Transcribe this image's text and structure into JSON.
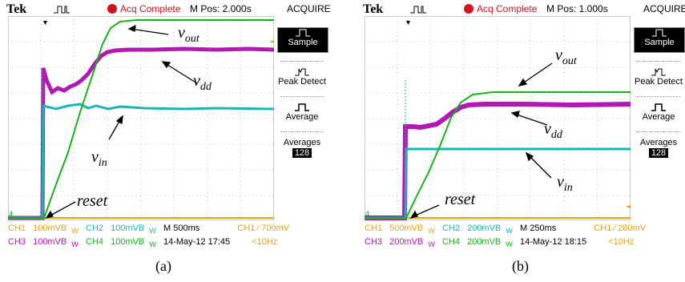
{
  "panels": [
    {
      "brand": "Tek",
      "acq_status": "Acq Complete",
      "m_pos": "M Pos: 2.000s",
      "menu_title": "ACQUIRE",
      "side_menu": {
        "sample": "Sample",
        "peak_detect": "Peak Detect",
        "average": "Average",
        "averages_label": "Averages",
        "averages_value": "128"
      },
      "status_line1": {
        "ch1": "CH1",
        "ch1_scale": "100mVB",
        "ch1_bw": "W",
        "ch2": "CH2",
        "ch2_scale": "100mVB",
        "ch2_bw": "W",
        "timebase": "M 500ms",
        "trigger": "CH1 ∕ 700mV"
      },
      "status_line2": {
        "ch3": "CH3",
        "ch3_scale": "100mVB",
        "ch3_bw": "W",
        "ch4": "CH4",
        "ch4_scale": "100mVB",
        "ch4_bw": "W",
        "datetime": "14-May-12 17:45",
        "freq": "<10Hz"
      },
      "labels": {
        "vout": "v",
        "vout_sub": "out",
        "vdd": "v",
        "vdd_sub": "dd",
        "vin": "v",
        "vin_sub": "in",
        "reset": "reset"
      },
      "caption": "(a)"
    },
    {
      "brand": "Tek",
      "acq_status": "Acq Complete",
      "m_pos": "M Pos: 1.000s",
      "menu_title": "ACQUIRE",
      "side_menu": {
        "sample": "Sample",
        "peak_detect": "Peak Detect",
        "average": "Average",
        "averages_label": "Averages",
        "averages_value": "128"
      },
      "status_line1": {
        "ch1": "CH1",
        "ch1_scale": "500mVB",
        "ch1_bw": "W",
        "ch2": "CH2",
        "ch2_scale": "200mVB",
        "ch2_bw": "W",
        "timebase": "M 250ms",
        "trigger": "CH1 ∕ 280mV"
      },
      "status_line2": {
        "ch3": "CH3",
        "ch3_scale": "200mVB",
        "ch3_bw": "W",
        "ch4": "CH4",
        "ch4_scale": "200mVB",
        "ch4_bw": "W",
        "datetime": "14-May-12 18:15",
        "freq": "<10Hz"
      },
      "labels": {
        "vout": "v",
        "vout_sub": "out",
        "vdd": "v",
        "vdd_sub": "dd",
        "vin": "v",
        "vin_sub": "in",
        "reset": "reset"
      },
      "caption": "(b)"
    }
  ],
  "colors": {
    "ch1": "#e8a218",
    "ch2": "#17b6b6",
    "ch3": "#b219b2",
    "ch4": "#19b219",
    "acq_dot": "#d4141c"
  }
}
